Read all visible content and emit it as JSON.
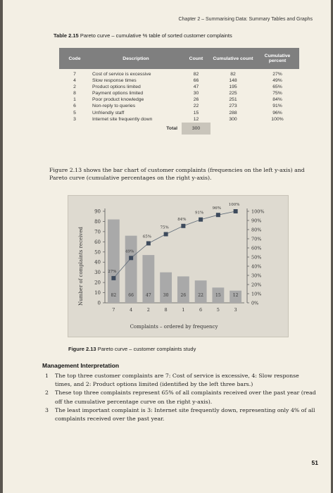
{
  "running_head": "Chapter 2 – Summarising Data: Summary Tables and Graphs",
  "table": {
    "caption_number": "Table 2.15",
    "caption_text": "Pareto curve – cumulative % table of sorted customer complaints",
    "headers": [
      "Code",
      "Description",
      "Count",
      "Cumulative count",
      "Cumulative percent"
    ],
    "rows": [
      [
        "7",
        "Cost of service is excessive",
        "82",
        "82",
        "27%"
      ],
      [
        "4",
        "Slow response times",
        "66",
        "148",
        "49%"
      ],
      [
        "2",
        "Product options limited",
        "47",
        "195",
        "65%"
      ],
      [
        "8",
        "Payment options limited",
        "30",
        "225",
        "75%"
      ],
      [
        "1",
        "Poor product knowledge",
        "26",
        "251",
        "84%"
      ],
      [
        "6",
        "Non-reply to queries",
        "22",
        "273",
        "91%"
      ],
      [
        "5",
        "Unfriendly staff",
        "15",
        "288",
        "96%"
      ],
      [
        "3",
        "Internet site frequently down",
        "12",
        "300",
        "100%"
      ]
    ],
    "total_label": "Total",
    "total_value": "300"
  },
  "intro_paragraph": "Figure 2.13 shows the bar chart of customer complaints (frequencies on the left y-axis) and Pareto curve (cumulative percentages on the right y-axis).",
  "chart_data": {
    "type": "bar",
    "categories": [
      "7",
      "4",
      "2",
      "8",
      "1",
      "6",
      "5",
      "3"
    ],
    "series": [
      {
        "type": "bar",
        "values": [
          82,
          66,
          47,
          30,
          26,
          22,
          15,
          12
        ]
      },
      {
        "type": "line",
        "axis": "right",
        "values": [
          27,
          49,
          65,
          75,
          84,
          91,
          96,
          100
        ]
      }
    ],
    "bar_labels": [
      "82",
      "66",
      "47",
      "30",
      "26",
      "22",
      "15",
      "12"
    ],
    "point_labels": [
      "27%",
      "49%",
      "65%",
      "75%",
      "84%",
      "91%",
      "96%",
      "100%"
    ],
    "xlabel": "Complaints – ordered by frequency",
    "ylabel": "Number of complaints received",
    "ylim": [
      0,
      90
    ],
    "yticks": [
      "0",
      "10",
      "20",
      "30",
      "40",
      "50",
      "60",
      "70",
      "80",
      "90"
    ],
    "y2lim": [
      0,
      100
    ],
    "y2ticks": [
      "0%",
      "10%",
      "20%",
      "30%",
      "40%",
      "50%",
      "60%",
      "70%",
      "80%",
      "90%",
      "100%"
    ],
    "bar_color": "#a9a9a9",
    "marker_color": "#3d4a5c",
    "line_color": "#5f6b78",
    "grid": false
  },
  "figure_caption_number": "Figure 2.13",
  "figure_caption_text": "Pareto curve – customer complaints study",
  "management_heading": "Management Interpretation",
  "management_items": [
    {
      "number": "1",
      "text": "The top three customer complaints are 7: Cost of service is excessive, 4: Slow response times, and 2: Product options limited (identified by the left three bars.)"
    },
    {
      "number": "2",
      "text": "These top three complaints represent 65% of all complaints received over the past year (read off the cumulative percentage curve on the right y-axis)."
    },
    {
      "number": "3",
      "text": "The least important complaint is 3: Internet site frequently down, representing only 4% of all complaints received over the past year."
    }
  ],
  "page_number": "51"
}
